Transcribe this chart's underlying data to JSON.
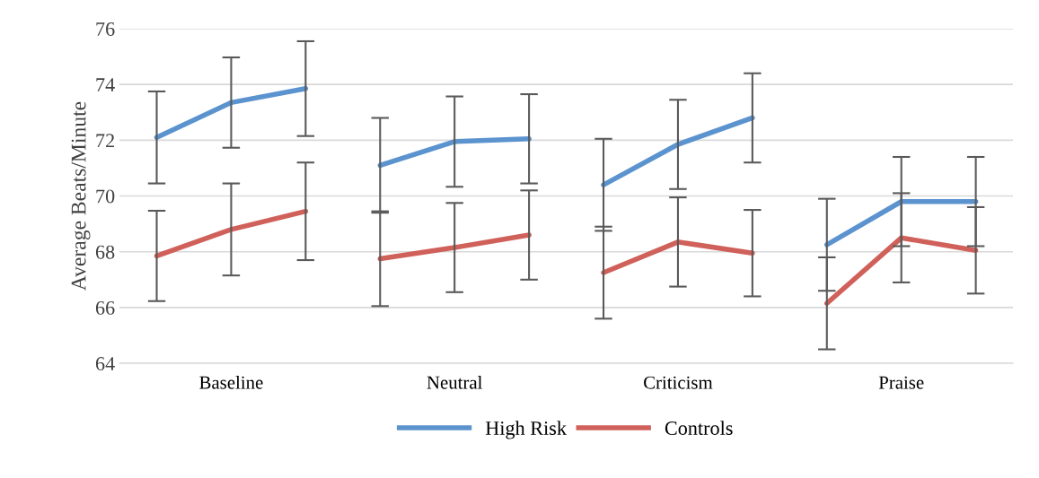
{
  "chart_data": {
    "type": "line",
    "ylabel": "Average Beats/Minute",
    "categories": [
      null,
      "Baseline",
      null,
      null,
      "Neutral",
      null,
      null,
      "Criticism",
      null,
      null,
      "Praise",
      null
    ],
    "ylim": [
      64,
      76
    ],
    "yticks": [
      64,
      66,
      68,
      70,
      72,
      74,
      76
    ],
    "grid": "y",
    "legend": "bottom",
    "marker": "none",
    "line_style": "solid",
    "series": [
      {
        "name": "High Risk",
        "color": "#5b93cf",
        "values": [
          72.1,
          73.35,
          73.85,
          null,
          null,
          null,
          null,
          null,
          null,
          null,
          null,
          null
        ],
        "errors": [
          1.65,
          1.62,
          1.7,
          null,
          null,
          null,
          null,
          null,
          null,
          null,
          null,
          null
        ]
      },
      {
        "color": "#5b93cf",
        "values": [
          null,
          null,
          null,
          71.1,
          71.95,
          72.05,
          null,
          null,
          null,
          null,
          null,
          null
        ],
        "errors": [
          null,
          null,
          null,
          1.7,
          1.62,
          1.6,
          null,
          null,
          null,
          null,
          null,
          null
        ]
      },
      {
        "color": "#5b93cf",
        "values": [
          null,
          null,
          null,
          null,
          null,
          null,
          70.4,
          71.85,
          72.8,
          null,
          null,
          null
        ],
        "errors": [
          null,
          null,
          null,
          null,
          null,
          null,
          1.65,
          1.6,
          1.6,
          null,
          null,
          null
        ]
      },
      {
        "color": "#5b93cf",
        "values": [
          null,
          null,
          null,
          null,
          null,
          null,
          null,
          null,
          null,
          68.25,
          69.8,
          69.8
        ],
        "errors": [
          null,
          null,
          null,
          null,
          null,
          null,
          null,
          null,
          null,
          1.65,
          1.6,
          1.6
        ]
      },
      {
        "name": "Controls",
        "color": "#d0605a",
        "values": [
          67.85,
          68.8,
          69.45,
          null,
          null,
          null,
          null,
          null,
          null,
          null,
          null,
          null
        ],
        "errors": [
          1.62,
          1.65,
          1.75,
          null,
          null,
          null,
          null,
          null,
          null,
          null,
          null,
          null
        ]
      },
      {
        "color": "#d0605a",
        "values": [
          null,
          null,
          null,
          67.75,
          68.15,
          68.6,
          null,
          null,
          null,
          null,
          null,
          null
        ],
        "errors": [
          null,
          null,
          null,
          1.7,
          1.6,
          1.6,
          null,
          null,
          null,
          null,
          null,
          null
        ]
      },
      {
        "color": "#d0605a",
        "values": [
          null,
          null,
          null,
          null,
          null,
          null,
          67.25,
          68.35,
          67.95,
          null,
          null,
          null
        ],
        "errors": [
          null,
          null,
          null,
          null,
          null,
          null,
          1.65,
          1.6,
          1.55,
          null,
          null,
          null
        ]
      },
      {
        "color": "#d0605a",
        "values": [
          null,
          null,
          null,
          null,
          null,
          null,
          null,
          null,
          null,
          66.15,
          68.5,
          68.05
        ],
        "errors": [
          null,
          null,
          null,
          null,
          null,
          null,
          null,
          null,
          null,
          1.65,
          1.6,
          1.55
        ]
      }
    ]
  }
}
